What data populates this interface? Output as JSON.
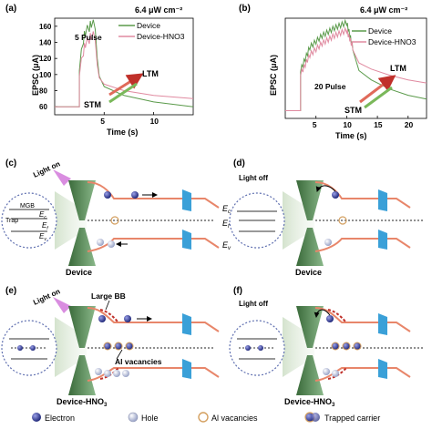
{
  "panels": {
    "a": {
      "label": "(a)",
      "intensity": "6.4 μW cm⁻²",
      "pulse_label": "5 Pulse",
      "ltm": "LTM",
      "stm": "STM"
    },
    "b": {
      "label": "(b)",
      "intensity": "6.4 μW cm⁻²",
      "pulse_label": "20 Pulse",
      "ltm": "LTM",
      "stm": "STM"
    },
    "c": {
      "label": "(c)",
      "light": "Light on",
      "name": "Device",
      "mgb": "MGB",
      "trap": "Trap",
      "ec": "E",
      "ec_sub": "c",
      "ef": "E",
      "ef_sub": "f",
      "ev": "E",
      "ev_sub": "v"
    },
    "d": {
      "label": "(d)",
      "light": "Light off",
      "name": "Device"
    },
    "e": {
      "label": "(e)",
      "light": "Light on",
      "name": "Device-HNO",
      "name_sub": "3",
      "large_bb": "Large BB",
      "al_vac": "Al vacancies"
    },
    "f": {
      "label": "(f)",
      "light": "Light off",
      "name": "Device-HNO",
      "name_sub": "3"
    }
  },
  "legend": {
    "electron": "Electron",
    "hole": "Hole",
    "al_vacancies": "Al vacancies",
    "trapped": "Trapped carrier"
  },
  "colors": {
    "device": "#5a9a4a",
    "hno3": "#e08aa0",
    "arrow_red": "#e06a5a",
    "arrow_green": "#7ab85a",
    "band": "#e8866a",
    "band_v": "#e8a040"
  },
  "chart_data": [
    {
      "type": "line",
      "panel": "a",
      "xlabel": "Time (s)",
      "ylabel": "EPSC (μA)",
      "xticks": [
        "5",
        "10"
      ],
      "yticks": [
        "60",
        "80",
        "100",
        "120",
        "140",
        "160"
      ],
      "xlim": [
        0,
        14
      ],
      "ylim": [
        50,
        170
      ],
      "series": [
        {
          "name": "Device",
          "x": [
            0,
            2.5,
            2.5,
            2.9,
            3.1,
            3.5,
            3.7,
            4.1,
            4.3,
            4.5,
            5,
            7,
            10,
            14
          ],
          "y": [
            60,
            60,
            105,
            140,
            150,
            155,
            160,
            158,
            120,
            98,
            85,
            74,
            66,
            60
          ]
        },
        {
          "name": "Device-HNO3",
          "x": [
            0,
            2.5,
            2.5,
            2.9,
            3.1,
            3.5,
            3.7,
            4.1,
            4.3,
            4.5,
            5,
            7,
            10,
            14
          ],
          "y": [
            60,
            60,
            98,
            125,
            135,
            140,
            145,
            144,
            112,
            96,
            88,
            80,
            74,
            70
          ]
        }
      ]
    },
    {
      "type": "line",
      "panel": "b",
      "xlabel": "Time (s)",
      "ylabel": "EPSC (μA)",
      "xticks": [
        "5",
        "10",
        "15",
        "20"
      ],
      "xlim": [
        0,
        23
      ],
      "ylim": [
        50,
        180
      ],
      "series": [
        {
          "name": "Device",
          "x": [
            0,
            2.5,
            2.5,
            4,
            6,
            8,
            10,
            11,
            12,
            14,
            17,
            20,
            23
          ],
          "y": [
            60,
            60,
            110,
            140,
            155,
            165,
            172,
            140,
            112,
            100,
            88,
            80,
            75
          ]
        },
        {
          "name": "Device-HNO3",
          "x": [
            0,
            2.5,
            2.5,
            4,
            6,
            8,
            10,
            11,
            12,
            14,
            17,
            20,
            23
          ],
          "y": [
            60,
            60,
            105,
            130,
            145,
            155,
            162,
            140,
            122,
            114,
            106,
            100,
            96
          ]
        }
      ]
    }
  ]
}
